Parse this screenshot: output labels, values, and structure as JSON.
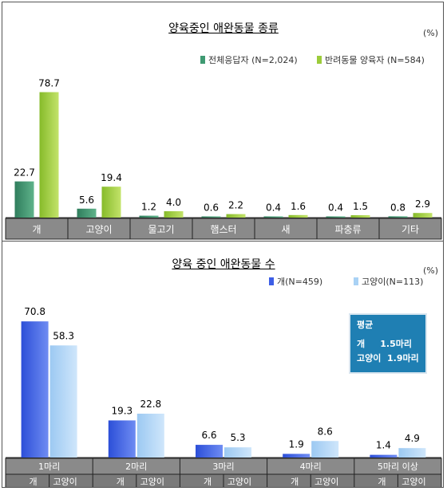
{
  "chart_data": [
    {
      "type": "bar",
      "title": "양육중인 애완동물 종류",
      "unit": "(%)",
      "categories": [
        "개",
        "고양이",
        "물고기",
        "햄스터",
        "새",
        "파충류",
        "기타"
      ],
      "series": [
        {
          "name": "전체응답자 (N=2,024)",
          "values": [
            22.7,
            5.6,
            1.2,
            0.6,
            0.4,
            0.4,
            0.8
          ]
        },
        {
          "name": "반려동물 양육자 (N=584)",
          "values": [
            78.7,
            19.4,
            4.0,
            2.2,
            1.6,
            1.5,
            2.9
          ]
        }
      ],
      "ylim": [
        0,
        85
      ],
      "legend": "top-right",
      "colors": [
        "#3f9a72",
        "#9ccc3a"
      ]
    },
    {
      "type": "bar",
      "title": "양육 중인 애완동물 수",
      "unit": "(%)",
      "categories": [
        "1마리",
        "2마리",
        "3마리",
        "4마리",
        "5마리 이상"
      ],
      "subcategory_labels": [
        "개",
        "고양이"
      ],
      "series": [
        {
          "name": "개(N=459)",
          "values": [
            70.8,
            19.3,
            6.6,
            1.9,
            1.4
          ]
        },
        {
          "name": "고양이(N=113)",
          "values": [
            58.3,
            22.8,
            5.3,
            8.6,
            4.9
          ]
        }
      ],
      "ylim": [
        0,
        80
      ],
      "legend": "top-right",
      "colors": [
        "#3d5ee6",
        "#a9d2f5"
      ],
      "average_box": {
        "heading": "평균",
        "lines": [
          "개     1.5마리",
          "고양이  1.9마리"
        ]
      }
    }
  ]
}
